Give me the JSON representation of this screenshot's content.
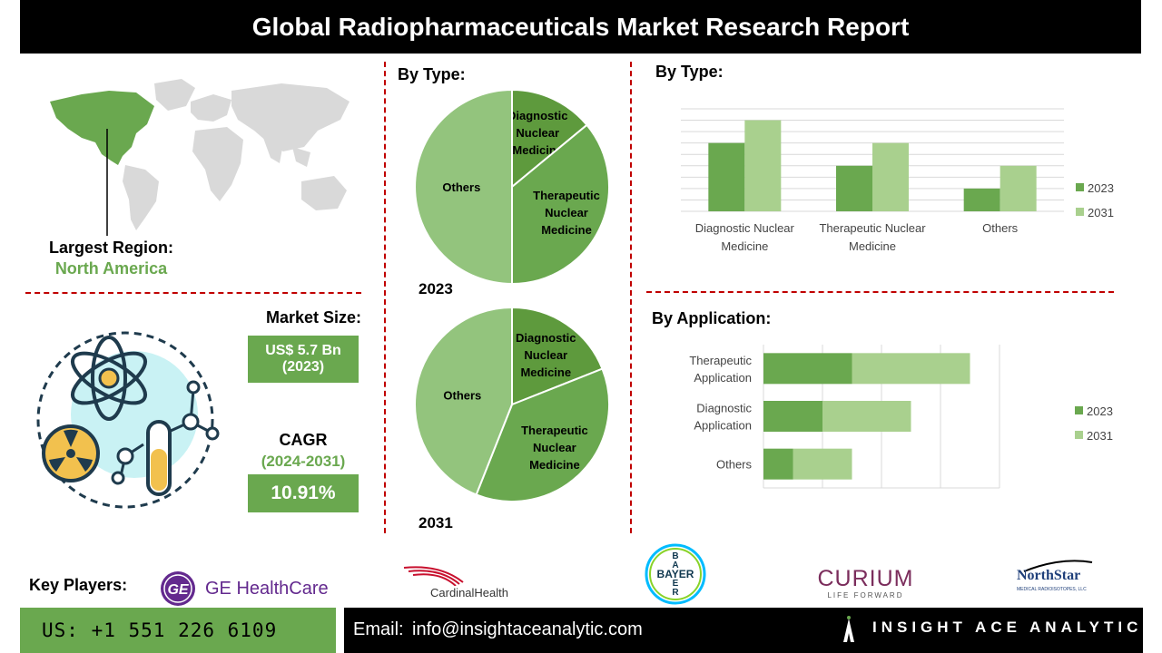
{
  "header": {
    "title": "Global Radiopharmaceuticals Market Research Report"
  },
  "region": {
    "label": "Largest Region:",
    "value": "North America"
  },
  "market": {
    "size_label": "Market Size:",
    "size_value": "US$ 5.7 Bn",
    "size_year": "(2023)",
    "cagr_label": "CAGR",
    "cagr_period": "(2024-2031)",
    "cagr_value": "10.91%"
  },
  "pie_section": {
    "title": "By Type:"
  },
  "key_players": {
    "label": "Key Players:",
    "companies": [
      "GE HealthCare",
      "CardinalHealth",
      "BAYER",
      "CURIUM",
      "LIFE FORWARD",
      "NorthStar",
      "MEDICAL RADIOISOTOPES, LLC"
    ]
  },
  "footer": {
    "phone": "US: +1 551 226 6109",
    "email_label": "Email:",
    "email": "info@insightaceanalytic.com",
    "brand": "INSIGHT ACE ANALYTIC"
  },
  "colors": {
    "dark_green": "#5e9a3d",
    "mid_green": "#6aa84f",
    "light_green": "#93c47d",
    "pale_green": "#a9d08e",
    "accent_red": "#c00000"
  },
  "chart_data": [
    {
      "type": "pie",
      "title": "2023",
      "section_title": "By Type:",
      "categories": [
        "Diagnostic Nuclear Medicine",
        "Therapeutic Nuclear Medicine",
        "Others"
      ],
      "values": [
        14,
        36,
        50
      ],
      "colors": [
        "#5e9a3d",
        "#6aa84f",
        "#93c47d"
      ]
    },
    {
      "type": "pie",
      "title": "2031",
      "categories": [
        "Diagnostic Nuclear Medicine",
        "Therapeutic Nuclear Medicine",
        "Others"
      ],
      "values": [
        19,
        37,
        44
      ],
      "colors": [
        "#5e9a3d",
        "#6aa84f",
        "#93c47d"
      ]
    },
    {
      "type": "bar",
      "title": "By Type:",
      "categories": [
        "Diagnostic Nuclear Medicine",
        "Therapeutic Nuclear Medicine",
        "Others"
      ],
      "series": [
        {
          "name": "2023",
          "values": [
            3,
            2,
            1
          ],
          "color": "#6aa84f"
        },
        {
          "name": "2031",
          "values": [
            4,
            3,
            2
          ],
          "color": "#a9d08e"
        }
      ],
      "ylim": [
        0,
        4.5
      ],
      "grid": true,
      "legend": "right"
    },
    {
      "type": "bar",
      "orientation": "horizontal",
      "stacked": true,
      "title": "By Application:",
      "categories": [
        "Therapeutic Application",
        "Diagnostic Application",
        "Others"
      ],
      "series": [
        {
          "name": "2023",
          "values": [
            1.5,
            1.0,
            0.5
          ],
          "color": "#6aa84f"
        },
        {
          "name": "2031",
          "values": [
            2.0,
            1.5,
            1.0
          ],
          "color": "#a9d08e"
        }
      ],
      "xlim": [
        0,
        4
      ],
      "grid": true,
      "legend": "right"
    }
  ]
}
